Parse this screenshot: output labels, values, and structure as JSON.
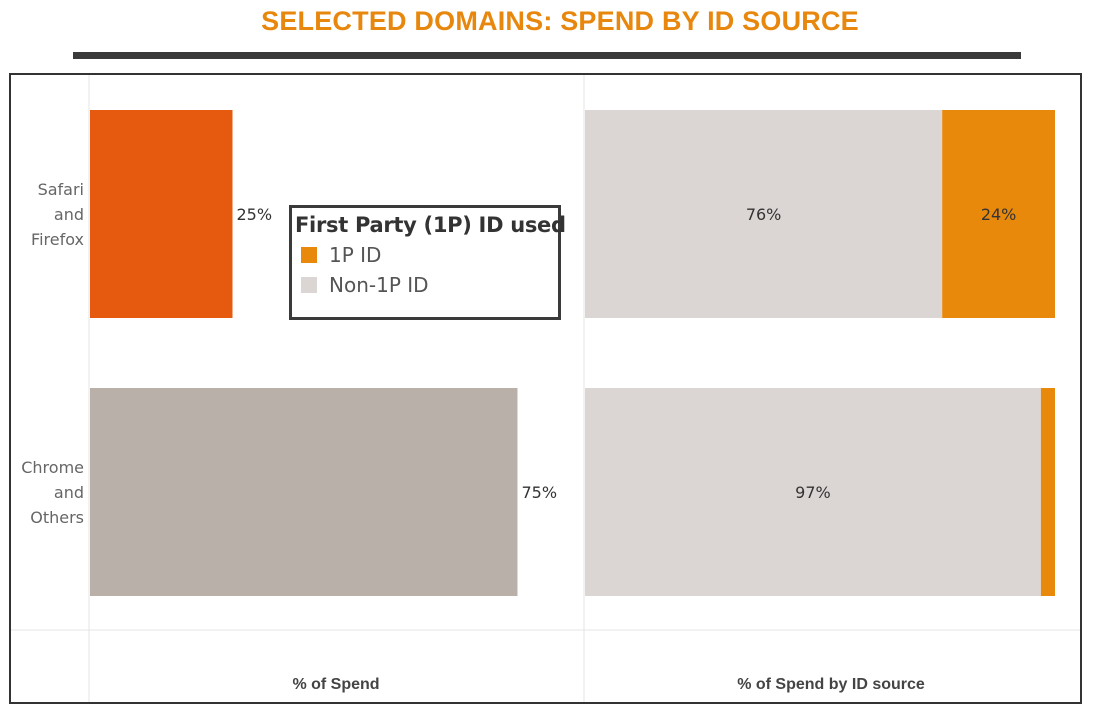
{
  "title": "SELECTED DOMAINS: SPEND BY ID SOURCE",
  "colors": {
    "title": "#e8870d",
    "safari_share_bar": "#e55a0e",
    "chrome_share_bar": "#b9b0aa",
    "one_p": "#e8890c",
    "non_one_p": "#dbd5d3"
  },
  "legend": {
    "title": "First Party (1P) ID used",
    "items": [
      {
        "label": "1P ID",
        "color": "#e8890c"
      },
      {
        "label": "Non-1P ID",
        "color": "#dbd5d3"
      }
    ]
  },
  "chart_data": [
    {
      "type": "bar",
      "orientation": "horizontal",
      "xlabel": "% of Spend",
      "categories": [
        "Safari\nand\nFirefox",
        "Chrome\nand\nOthers"
      ],
      "values": [
        25,
        75
      ],
      "data_labels": [
        "25%",
        "75%"
      ],
      "colors": [
        "#e55a0e",
        "#b9b0aa"
      ],
      "xlim": [
        0,
        100
      ],
      "grid": false
    },
    {
      "type": "bar",
      "orientation": "horizontal",
      "stacked": true,
      "xlabel": "% of Spend by ID source",
      "categories": [
        "Safari\nand\nFirefox",
        "Chrome\nand\nOthers"
      ],
      "series": [
        {
          "name": "Non-1P ID",
          "values": [
            76,
            97
          ],
          "data_labels": [
            "76%",
            "97%"
          ],
          "color": "#dbd5d3"
        },
        {
          "name": "1P ID",
          "values": [
            24,
            3
          ],
          "data_labels": [
            "24%",
            ""
          ],
          "color": "#e8890c"
        }
      ],
      "xlim": [
        0,
        100
      ],
      "grid": false
    }
  ]
}
